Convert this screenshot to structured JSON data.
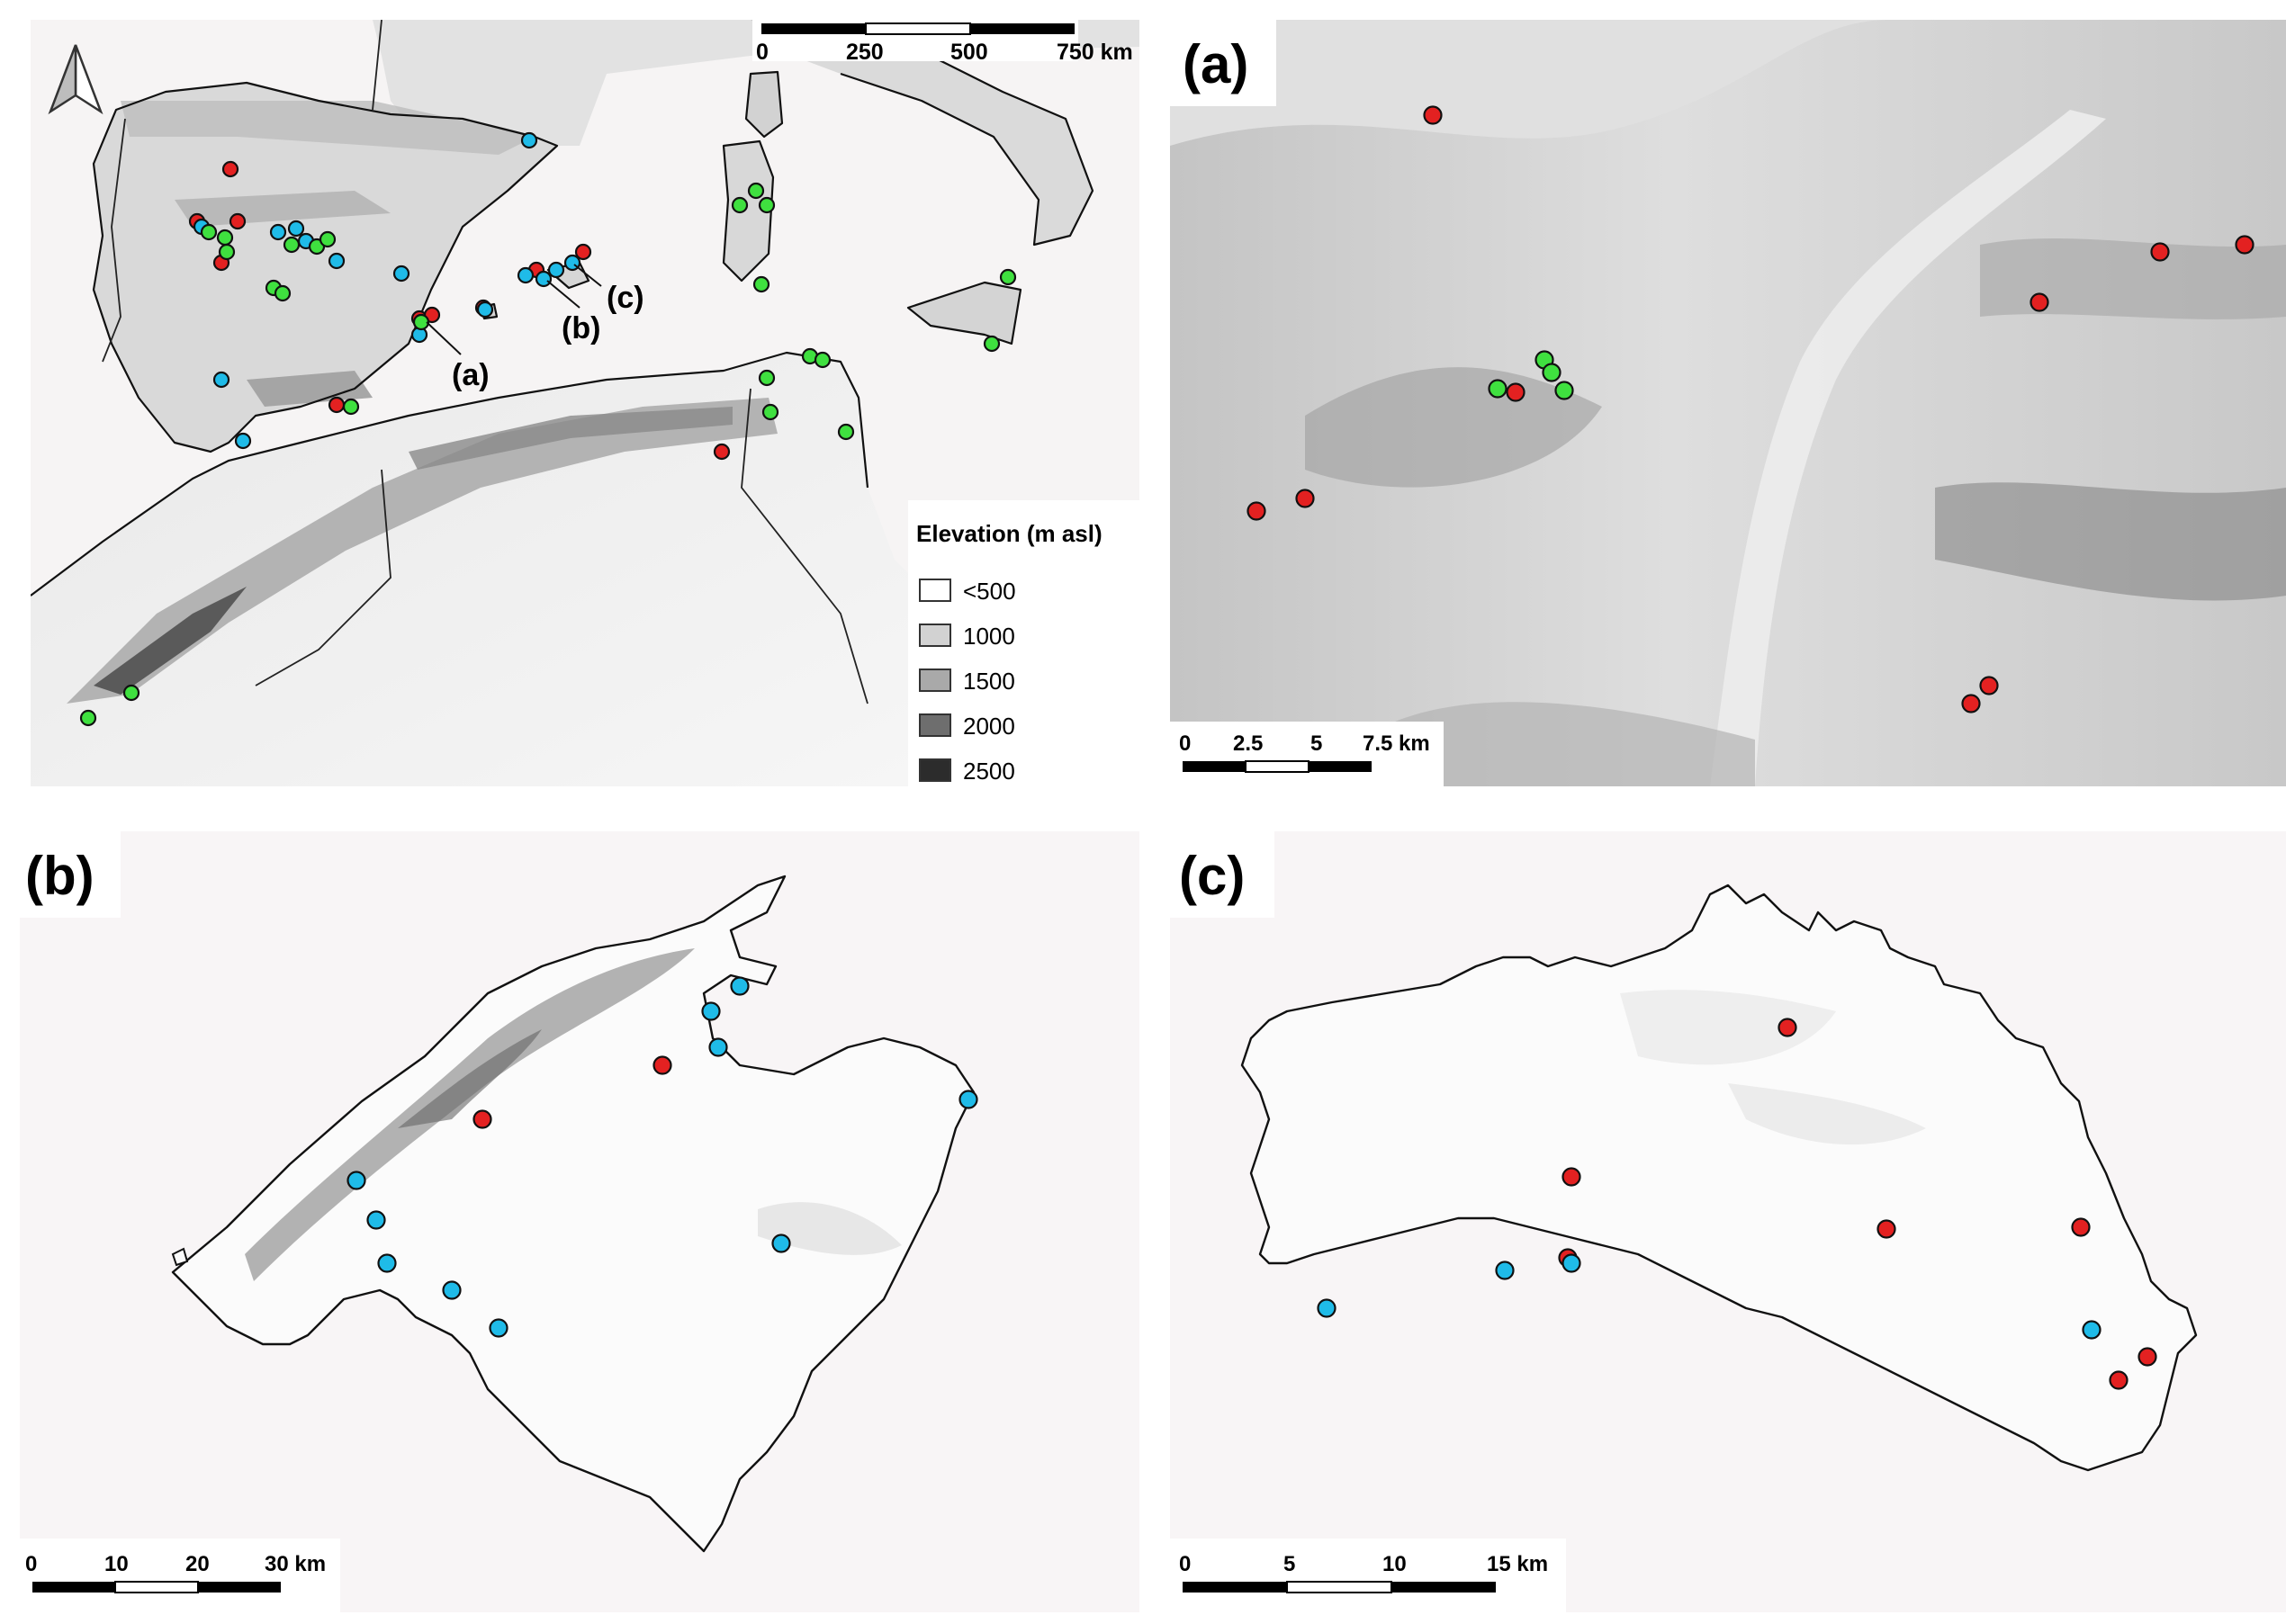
{
  "colors": {
    "red": "#e32121",
    "blue": "#1fbbe8",
    "green": "#3fe03f",
    "background": "#f8f5f6"
  },
  "overview": {
    "scale_labels": [
      "0",
      "250",
      "500",
      "750 km"
    ],
    "north_arrow": "north-arrow-icon",
    "callouts": [
      "(a)",
      "(b)",
      "(c)"
    ],
    "legend": {
      "title": "Elevation (m asl)",
      "items": [
        {
          "label": "<500",
          "color": "#ffffff"
        },
        {
          "label": "1000",
          "color": "#d2d2d2"
        },
        {
          "label": "1500",
          "color": "#a9a9a9"
        },
        {
          "label": "2000",
          "color": "#6e6e6e"
        },
        {
          "label": "2500",
          "color": "#2c2c2c"
        }
      ]
    }
  },
  "panel_a": {
    "label": "(a)",
    "scale_labels": [
      "0",
      "2.5",
      "5",
      "7.5 km"
    ]
  },
  "panel_b": {
    "label": "(b)",
    "scale_labels": [
      "0",
      "10",
      "20",
      "30 km"
    ]
  },
  "panel_c": {
    "label": "(c)",
    "scale_labels": [
      "0",
      "5",
      "10",
      "15 km"
    ]
  }
}
